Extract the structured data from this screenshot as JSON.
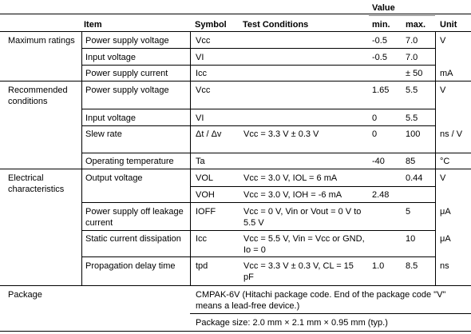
{
  "header": {
    "value": "Value",
    "item": "Item",
    "symbol": "Symbol",
    "test_conditions": "Test Conditions",
    "min": "min.",
    "max": "max.",
    "unit": "Unit"
  },
  "sections": {
    "maximum": "Maximum ratings",
    "recommended": "Recommended conditions",
    "electrical": "Electrical characteristics",
    "package": "Package"
  },
  "rows": [
    {
      "item": "Power supply voltage",
      "symbol": "Vcc",
      "conditions": "",
      "min": "-0.5",
      "max": "7.0",
      "unit": "V"
    },
    {
      "item": "Input voltage",
      "symbol": "VI",
      "conditions": "",
      "min": "-0.5",
      "max": "7.0",
      "unit": ""
    },
    {
      "item": "Power supply current",
      "symbol": "Icc",
      "conditions": "",
      "min": "",
      "max": "± 50",
      "unit": "mA"
    },
    {
      "item": "Power supply voltage",
      "symbol": "Vcc",
      "conditions": "",
      "min": "1.65",
      "max": "5.5",
      "unit": "V"
    },
    {
      "item": "Input voltage",
      "symbol": "VI",
      "conditions": "",
      "min": "0",
      "max": "5.5",
      "unit": ""
    },
    {
      "item": "Slew rate",
      "symbol": "Δt / Δv",
      "conditions": "Vcc = 3.3 V ± 0.3 V",
      "min": "0",
      "max": "100",
      "unit": "ns / V"
    },
    {
      "item": "Operating temperature",
      "symbol": "Ta",
      "conditions": "",
      "min": "-40",
      "max": "85",
      "unit": "°C"
    },
    {
      "item": "Output voltage",
      "symbol": "VOL",
      "conditions": "Vcc = 3.0 V, IOL = 6 mA",
      "min": "",
      "max": "0.44",
      "unit": "V"
    },
    {
      "item": "",
      "symbol": "VOH",
      "conditions": "Vcc = 3.0 V, IOH = -6 mA",
      "min": "2.48",
      "max": "",
      "unit": ""
    },
    {
      "item": "Power supply off leakage current",
      "symbol": "IOFF",
      "conditions": "Vcc = 0 V, Vin or Vout = 0 V to 5.5 V",
      "min": "",
      "max": "5",
      "unit": "μA"
    },
    {
      "item": "Static current dissipation",
      "symbol": "Icc",
      "conditions": "Vcc = 5.5 V, Vin = Vcc or GND, Io = 0",
      "min": "",
      "max": "10",
      "unit": "μA"
    },
    {
      "item": "Propagation delay time",
      "symbol": "tpd",
      "conditions": "Vcc = 3.3 V ± 0.3 V, CL = 15 pF",
      "min": "1.0",
      "max": "8.5",
      "unit": "ns"
    }
  ],
  "package": {
    "code": "CMPAK-6V (Hitachi package code. End of the package code \"V\" means a lead-free device.)",
    "size": "Package size: 2.0 mm × 2.1 mm × 0.95 mm (typ.)"
  }
}
